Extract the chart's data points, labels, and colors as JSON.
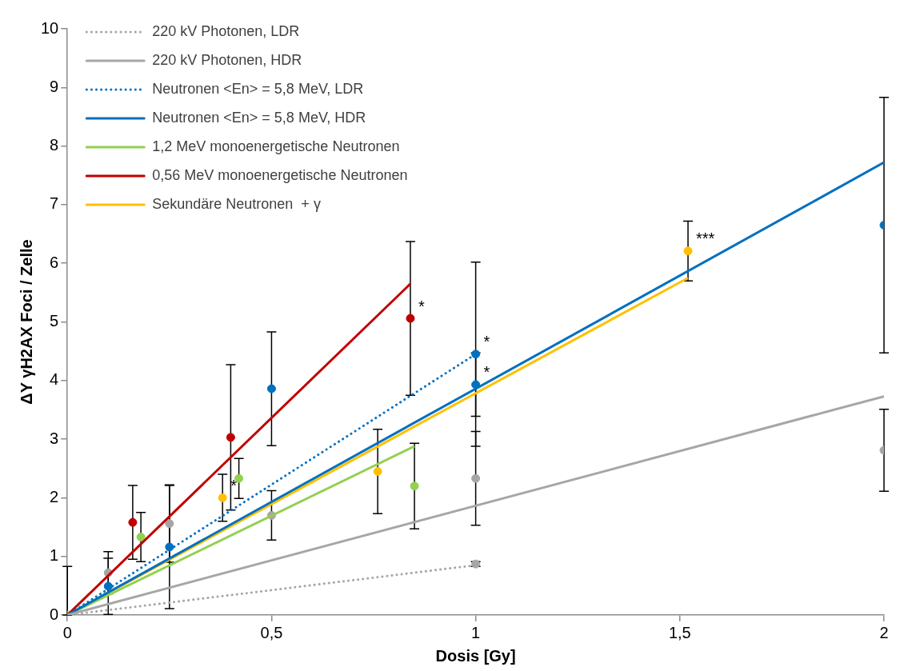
{
  "chart_data": {
    "type": "line",
    "xlabel": "Dosis [Gy]",
    "ylabel": "ΔY γH2AX Foci / Zelle",
    "xlim": [
      0,
      2
    ],
    "xticks": [
      0,
      {
        "value": 0.5,
        "label": "0,5"
      },
      1,
      {
        "value": 1.5,
        "label": "1,5"
      },
      2
    ],
    "ylim": [
      0,
      10
    ],
    "yticks": [
      0,
      1,
      2,
      3,
      4,
      5,
      6,
      7,
      8,
      9,
      10
    ],
    "grid": false,
    "legend": "top left",
    "series": [
      {
        "name": "220 kV Photonen, LDR",
        "color": "#a6a6a6",
        "line_style": "dotted",
        "marker": "none",
        "x": [
          0,
          1
        ],
        "values": [
          0,
          0.85
        ]
      },
      {
        "name": "220 kV Photonen, HDR",
        "color": "#a6a6a6",
        "line_style": "solid",
        "marker": "none",
        "x": [
          0,
          2
        ],
        "values": [
          0,
          3.73
        ]
      },
      {
        "name": "Neutronen <En> = 5,8 MeV, LDR",
        "color": "#0070c0",
        "line_style": "dotted",
        "marker": "none",
        "x": [
          0,
          1
        ],
        "values": [
          0,
          4.45
        ]
      },
      {
        "name": "Neutronen <En> = 5,8 MeV, HDR",
        "color": "#0070c0",
        "line_style": "solid",
        "marker": "none",
        "x": [
          0,
          2
        ],
        "values": [
          0,
          7.72
        ]
      },
      {
        "name": "1,2 MeV monoenergetische Neutronen",
        "color": "#92d050",
        "line_style": "solid",
        "marker": "none",
        "x": [
          0,
          0.85
        ],
        "values": [
          0,
          2.88
        ]
      },
      {
        "name": "0,56 MeV monoenergetische Neutronen",
        "color": "#c00000",
        "line_style": "solid",
        "marker": "none",
        "x": [
          0,
          0.84
        ],
        "values": [
          0,
          5.65
        ]
      },
      {
        "name": "Sekundäre Neutronen  + γ",
        "color": "#ffc000",
        "line_style": "solid",
        "marker": "none",
        "x": [
          0,
          1.52
        ],
        "values": [
          0,
          5.75
        ]
      },
      {
        "type": "scatter",
        "color": "#a6a6a6",
        "marker": "circle",
        "x": [
          1
        ],
        "values": [
          0.87
        ],
        "errors": [
          0.04
        ]
      },
      {
        "type": "scatter",
        "color": "#a6a6a6",
        "marker": "circle",
        "x": [
          0.1,
          0.25,
          0.5,
          1,
          2
        ],
        "values": [
          0.72,
          1.56,
          1.7,
          2.33,
          2.81
        ],
        "errors": [
          0.36,
          0.66,
          0.42,
          0.8,
          0.7
        ]
      },
      {
        "type": "scatter",
        "color": "#0070c0",
        "marker": "circle",
        "x": [
          1
        ],
        "values": [
          4.45
        ],
        "errors": [
          1.57
        ]
      },
      {
        "type": "scatter",
        "color": "#0070c0",
        "marker": "circle",
        "x": [
          0.1,
          0.25,
          0.5,
          1,
          2
        ],
        "values": [
          0.49,
          1.16,
          3.86,
          3.93,
          6.65
        ],
        "errors": [
          0.48,
          1.05,
          0.97,
          0.54,
          2.18
        ]
      },
      {
        "type": "scatter",
        "color": "#92d050",
        "marker": "circle",
        "x": [
          0.18,
          0.42,
          0.85
        ],
        "values": [
          1.33,
          2.33,
          2.2
        ],
        "errors": [
          0.42,
          0.34,
          0.73
        ]
      },
      {
        "type": "scatter",
        "color": "#c00000",
        "marker": "circle",
        "x": [
          0.16,
          0.4,
          0.84
        ],
        "values": [
          1.58,
          3.03,
          5.06
        ],
        "errors": [
          0.63,
          1.24,
          1.31
        ]
      },
      {
        "type": "scatter",
        "color": "#ffc000",
        "marker": "circle",
        "x": [
          0,
          0.38,
          0.76,
          1.52
        ],
        "values": [
          0,
          2,
          2.45,
          6.21
        ],
        "errors": [
          [
            0,
            0.83
          ],
          0.4,
          0.72,
          0.51
        ]
      }
    ],
    "annotations": [
      {
        "text": "*",
        "x": 0.38,
        "y": 2
      },
      {
        "text": "*",
        "x": 0.84,
        "y": 5.06
      },
      {
        "text": "*",
        "x": 1,
        "y": 4.45
      },
      {
        "text": "*",
        "x": 1,
        "y": 3.93
      },
      {
        "text": "***",
        "x": 1.52,
        "y": 6.21
      }
    ]
  }
}
